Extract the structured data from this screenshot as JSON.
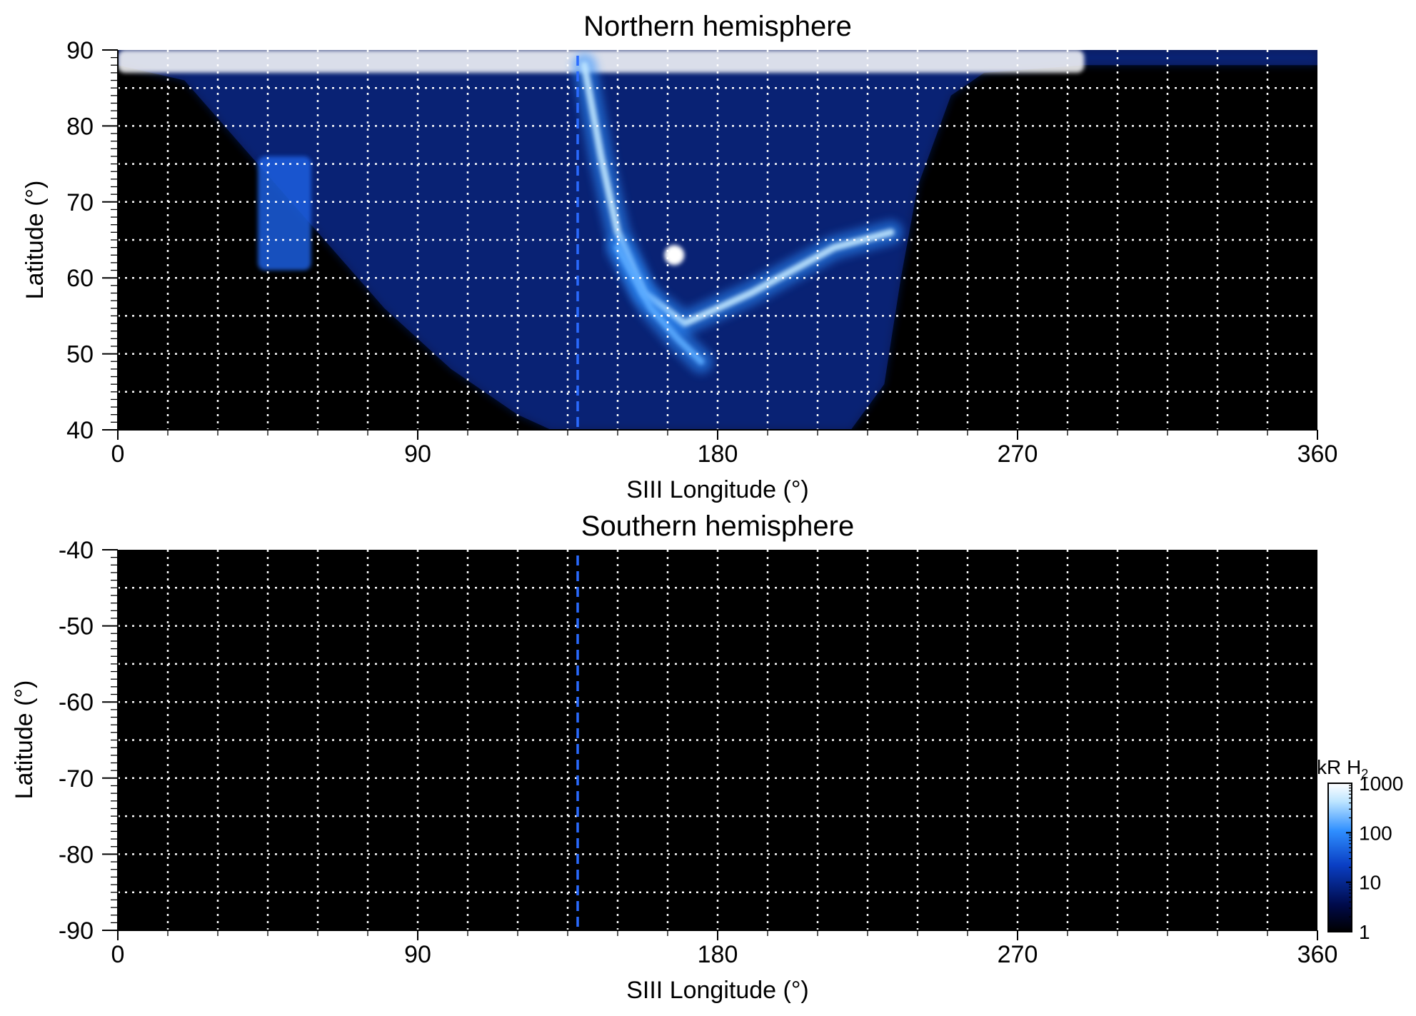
{
  "chart_data": [
    {
      "type": "heatmap",
      "title": "Northern hemisphere",
      "xlabel": "SIII Longitude (°)",
      "ylabel": "Latitude (°)",
      "xlim": [
        0,
        360
      ],
      "ylim": [
        40,
        90
      ],
      "xticks": [
        0,
        90,
        180,
        270,
        360
      ],
      "yticks": [
        40,
        50,
        60,
        70,
        80,
        90
      ],
      "grid": true,
      "grid_style": "dotted white",
      "reference_line": {
        "x": 138,
        "style": "dashed blue"
      },
      "background": "#000000",
      "coverage_boundary": [
        [
          0,
          88
        ],
        [
          20,
          86
        ],
        [
          40,
          76
        ],
        [
          60,
          66
        ],
        [
          80,
          56
        ],
        [
          100,
          48
        ],
        [
          120,
          42
        ],
        [
          130,
          40
        ],
        [
          220,
          40
        ],
        [
          230,
          46
        ],
        [
          235,
          60
        ],
        [
          240,
          72
        ],
        [
          250,
          84
        ],
        [
          260,
          87
        ],
        [
          290,
          88
        ],
        [
          360,
          88
        ],
        [
          360,
          90
        ],
        [
          0,
          90
        ]
      ],
      "features": [
        {
          "desc": "polar cap bright emission",
          "lon": [
            0,
            290
          ],
          "lat": [
            87,
            90
          ],
          "level_kR": 1000
        },
        {
          "desc": "main emission band",
          "path": [
            [
              140,
              88
            ],
            [
              145,
              76
            ],
            [
              150,
              66
            ],
            [
              158,
              58
            ],
            [
              170,
              54
            ],
            [
              190,
              58
            ],
            [
              215,
              64
            ],
            [
              232,
              66
            ]
          ],
          "level_kR": 600
        },
        {
          "desc": "inner arc",
          "path": [
            [
              150,
              64
            ],
            [
              160,
              56
            ],
            [
              168,
              52
            ],
            [
              175,
              49
            ]
          ],
          "level_kR": 300
        },
        {
          "desc": "bright spot",
          "lon": 167,
          "lat": 63,
          "level_kR": 1000
        },
        {
          "desc": "isolated patch",
          "lon": [
            42,
            58
          ],
          "lat": [
            61,
            76
          ],
          "level_kR": 40
        }
      ]
    },
    {
      "type": "heatmap",
      "title": "Southern hemisphere",
      "xlabel": "SIII Longitude (°)",
      "ylabel": "Latitude (°)",
      "xlim": [
        0,
        360
      ],
      "ylim": [
        -90,
        -40
      ],
      "xticks": [
        0,
        90,
        180,
        270,
        360
      ],
      "yticks": [
        -40,
        -50,
        -60,
        -70,
        -80,
        -90
      ],
      "grid": true,
      "grid_style": "dotted white",
      "reference_line": {
        "x": 138,
        "style": "dashed blue"
      },
      "background": "#000000",
      "features": []
    }
  ],
  "colorbar": {
    "unit_prefix": "kR H",
    "unit_sub": "2",
    "scale": "log",
    "range": [
      1,
      1000
    ],
    "ticks": [
      "1",
      "10",
      "100",
      "1000"
    ],
    "colors": [
      "#000000",
      "#000a4a",
      "#0a3fc4",
      "#2f8fff",
      "#bfe6ff",
      "#ffffff"
    ]
  }
}
